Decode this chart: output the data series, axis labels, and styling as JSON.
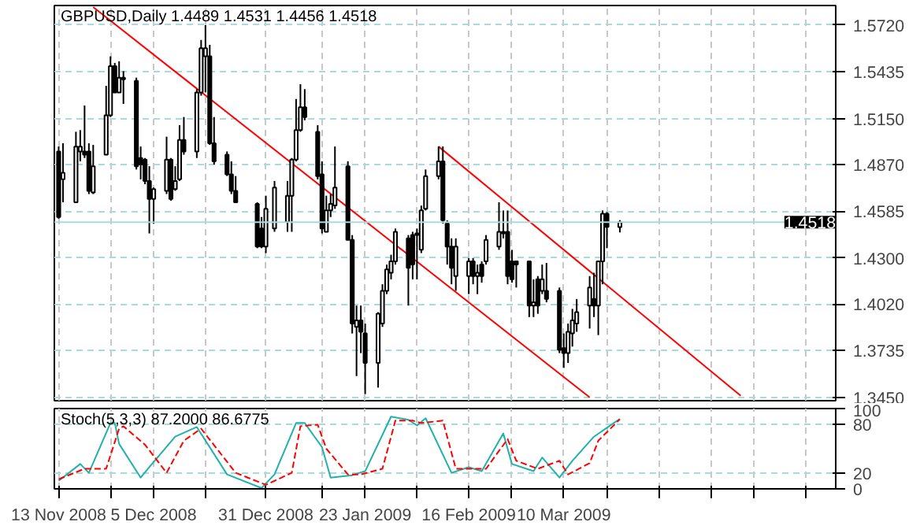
{
  "chart_data": [
    {
      "type": "candlestick",
      "title": "GBPUSD,Daily  1.4489 1.4531 1.4456 1.4518",
      "x": [
        "2008-11-13",
        "2008-11-14",
        "2008-11-17",
        "2008-11-18",
        "2008-11-19",
        "2008-11-20",
        "2008-11-21",
        "2008-11-24",
        "2008-11-25",
        "2008-11-26",
        "2008-11-27",
        "2008-11-28",
        "2008-12-01",
        "2008-12-02",
        "2008-12-03",
        "2008-12-04",
        "2008-12-05",
        "2008-12-08",
        "2008-12-09",
        "2008-12-10",
        "2008-12-11",
        "2008-12-12",
        "2008-12-15",
        "2008-12-16",
        "2008-12-17",
        "2008-12-18",
        "2008-12-19",
        "2008-12-22",
        "2008-12-23",
        "2008-12-24",
        "2008-12-29",
        "2008-12-30",
        "2008-12-31",
        "2009-01-02",
        "2009-01-05",
        "2009-01-06",
        "2009-01-07",
        "2009-01-08",
        "2009-01-09",
        "2009-01-12",
        "2009-01-13",
        "2009-01-14",
        "2009-01-15",
        "2009-01-16",
        "2009-01-19",
        "2009-01-20",
        "2009-01-21",
        "2009-01-22",
        "2009-01-23",
        "2009-01-26",
        "2009-01-27",
        "2009-01-28",
        "2009-01-29",
        "2009-01-30",
        "2009-02-02",
        "2009-02-03",
        "2009-02-04",
        "2009-02-05",
        "2009-02-06",
        "2009-02-09",
        "2009-02-10",
        "2009-02-11",
        "2009-02-12",
        "2009-02-13",
        "2009-02-16",
        "2009-02-17",
        "2009-02-18",
        "2009-02-19",
        "2009-02-20",
        "2009-02-23",
        "2009-02-24",
        "2009-02-25",
        "2009-02-26",
        "2009-02-27",
        "2009-03-02",
        "2009-03-03",
        "2009-03-04",
        "2009-03-05",
        "2009-03-06",
        "2009-03-09",
        "2009-03-10",
        "2009-03-11",
        "2009-03-12",
        "2009-03-13",
        "2009-03-16",
        "2009-03-17",
        "2009-03-18",
        "2009-03-19",
        "2009-03-20",
        "2009-03-23"
      ],
      "ohlc": [
        [
          1.495,
          1.498,
          1.454,
          1.455
        ],
        [
          1.478,
          1.5,
          1.464,
          1.482
        ],
        [
          1.464,
          1.507,
          1.464,
          1.498
        ],
        [
          1.495,
          1.508,
          1.489,
          1.498
        ],
        [
          1.495,
          1.523,
          1.491,
          1.493
        ],
        [
          1.495,
          1.5,
          1.469,
          1.471
        ],
        [
          1.47,
          1.499,
          1.469,
          1.486
        ],
        [
          1.493,
          1.535,
          1.493,
          1.517
        ],
        [
          1.517,
          1.553,
          1.516,
          1.547
        ],
        [
          1.547,
          1.549,
          1.531,
          1.531
        ],
        [
          1.531,
          1.55,
          1.531,
          1.54
        ],
        [
          1.539,
          1.544,
          1.524,
          1.54
        ],
        [
          1.538,
          1.54,
          1.484,
          1.486
        ],
        [
          1.491,
          1.498,
          1.478,
          1.487
        ],
        [
          1.49,
          1.491,
          1.475,
          1.477
        ],
        [
          1.477,
          1.486,
          1.445,
          1.466
        ],
        [
          1.466,
          1.473,
          1.451,
          1.472
        ],
        [
          1.471,
          1.504,
          1.469,
          1.49
        ],
        [
          1.49,
          1.491,
          1.465,
          1.466
        ],
        [
          1.472,
          1.486,
          1.471,
          1.477
        ],
        [
          1.478,
          1.511,
          1.477,
          1.502
        ],
        [
          1.502,
          1.516,
          1.493,
          1.495
        ],
        [
          1.495,
          1.533,
          1.491,
          1.531
        ],
        [
          1.531,
          1.563,
          1.529,
          1.558
        ],
        [
          1.553,
          1.572,
          1.531,
          1.558
        ],
        [
          1.553,
          1.56,
          1.499,
          1.5
        ],
        [
          1.5,
          1.516,
          1.487,
          1.489
        ],
        [
          1.493,
          1.495,
          1.48,
          1.481
        ],
        [
          1.481,
          1.489,
          1.469,
          1.471
        ],
        [
          1.471,
          1.48,
          1.464,
          1.464
        ],
        [
          1.463,
          1.464,
          1.436,
          1.437
        ],
        [
          1.448,
          1.455,
          1.436,
          1.437
        ],
        [
          1.437,
          1.468,
          1.433,
          1.46
        ],
        [
          1.448,
          1.477,
          1.446,
          1.473
        ],
        [
          1.452,
          1.477,
          1.446,
          1.468
        ],
        [
          1.468,
          1.491,
          1.446,
          1.49
        ],
        [
          1.49,
          1.527,
          1.489,
          1.508
        ],
        [
          1.508,
          1.536,
          1.507,
          1.522
        ],
        [
          1.522,
          1.533,
          1.514,
          1.516
        ],
        [
          1.507,
          1.511,
          1.478,
          1.48
        ],
        [
          1.481,
          1.489,
          1.445,
          1.448
        ],
        [
          1.446,
          1.468,
          1.446,
          1.459
        ],
        [
          1.459,
          1.469,
          1.455,
          1.463
        ],
        [
          1.462,
          1.498,
          1.46,
          1.473
        ],
        [
          1.486,
          1.489,
          1.441,
          1.441
        ],
        [
          1.441,
          1.444,
          1.384,
          1.39
        ],
        [
          1.388,
          1.401,
          1.358,
          1.392
        ],
        [
          1.392,
          1.401,
          1.372,
          1.385
        ],
        [
          1.384,
          1.39,
          1.347,
          1.366
        ],
        [
          1.366,
          1.397,
          1.351,
          1.396
        ],
        [
          1.39,
          1.414,
          1.388,
          1.41
        ],
        [
          1.41,
          1.426,
          1.408,
          1.423
        ],
        [
          1.421,
          1.432,
          1.417,
          1.428
        ],
        [
          1.428,
          1.448,
          1.426,
          1.446
        ],
        [
          1.442,
          1.444,
          1.401,
          1.424
        ],
        [
          1.444,
          1.446,
          1.417,
          1.426
        ],
        [
          1.444,
          1.448,
          1.417,
          1.445
        ],
        [
          1.435,
          1.462,
          1.433,
          1.459
        ],
        [
          1.46,
          1.484,
          1.459,
          1.48
        ],
        [
          1.48,
          1.498,
          1.478,
          1.489
        ],
        [
          1.489,
          1.498,
          1.451,
          1.453
        ],
        [
          1.451,
          1.453,
          1.426,
          1.437
        ],
        [
          1.437,
          1.442,
          1.414,
          1.424
        ],
        [
          1.419,
          1.442,
          1.41,
          1.437
        ],
        [
          1.419,
          1.43,
          1.408,
          1.428
        ],
        [
          1.428,
          1.43,
          1.414,
          1.419
        ],
        [
          1.419,
          1.426,
          1.408,
          1.421
        ],
        [
          1.426,
          1.428,
          1.415,
          1.419
        ],
        [
          1.428,
          1.444,
          1.426,
          1.441
        ],
        [
          1.437,
          1.464,
          1.435,
          1.446
        ],
        [
          1.445,
          1.459,
          1.442,
          1.446
        ],
        [
          1.446,
          1.459,
          1.414,
          1.419
        ],
        [
          1.428,
          1.435,
          1.415,
          1.417
        ],
        [
          1.428,
          1.428,
          1.412,
          1.426
        ],
        [
          1.428,
          1.428,
          1.394,
          1.401
        ],
        [
          1.401,
          1.417,
          1.394,
          1.403
        ],
        [
          1.417,
          1.419,
          1.396,
          1.401
        ],
        [
          1.41,
          1.426,
          1.408,
          1.417
        ],
        [
          1.41,
          1.427,
          1.403,
          1.405
        ],
        [
          1.41,
          1.412,
          1.372,
          1.374
        ],
        [
          1.375,
          1.384,
          1.363,
          1.372
        ],
        [
          1.372,
          1.39,
          1.366,
          1.385
        ],
        [
          1.384,
          1.399,
          1.376,
          1.392
        ],
        [
          1.39,
          1.405,
          1.385,
          1.397
        ],
        [
          1.401,
          1.419,
          1.387,
          1.412
        ],
        [
          1.405,
          1.421,
          1.394,
          1.401
        ],
        [
          1.401,
          1.428,
          1.383,
          1.428
        ],
        [
          1.428,
          1.459,
          1.414,
          1.457
        ],
        [
          1.457,
          1.458,
          1.436,
          1.449
        ],
        [
          1.4489,
          1.4531,
          1.4456,
          1.4518
        ]
      ],
      "series": [
        {
          "type": "line",
          "color": "#ff0000",
          "x": [
            "2008-11-21",
            "2009-03-16"
          ],
          "values": [
            1.583,
            1.345
          ]
        },
        {
          "type": "line",
          "color": "#ff0000",
          "x": [
            "2009-02-09",
            "2009-04-20"
          ],
          "values": [
            1.498,
            1.346
          ]
        }
      ],
      "xlim": [
        "2008-11-12",
        "2009-05-12"
      ],
      "ylim": [
        1.343,
        1.584
      ],
      "xticks": [
        {
          "value": "2008-11-13",
          "label": null
        },
        {
          "value": "2008-11-25",
          "label": null
        },
        {
          "value": "2008-12-05",
          "label": null
        },
        {
          "value": "2008-12-17",
          "label": null
        },
        {
          "value": "2008-12-31",
          "label": null
        },
        {
          "value": "2009-01-13",
          "label": null
        },
        {
          "value": "2009-01-23",
          "label": null
        },
        {
          "value": "2009-02-04",
          "label": null
        },
        {
          "value": "2009-02-16",
          "label": null
        },
        {
          "value": "2009-02-26",
          "label": null
        },
        {
          "value": "2009-03-10",
          "label": null
        },
        {
          "value": "2009-03-20",
          "label": null
        },
        {
          "value": "2009-04-01",
          "label": null
        },
        {
          "value": "2009-04-13",
          "label": null
        },
        {
          "value": "2009-04-23",
          "label": null
        },
        {
          "value": "2009-05-05",
          "label": null
        }
      ],
      "yticks": [
        {
          "value": 1.345,
          "label": "1.3450"
        },
        1.3735,
        {
          "value": 1.402,
          "label": "1.4020"
        },
        {
          "value": 1.43,
          "label": "1.4300"
        },
        1.4585,
        {
          "value": 1.487,
          "label": "1.4870"
        },
        {
          "value": 1.515,
          "label": "1.5150"
        },
        1.5435,
        {
          "value": 1.572,
          "label": "1.5720"
        }
      ],
      "tick_labels": "y",
      "grid": true,
      "ref_lines": [
        {
          "axis": "y",
          "value": 1.4518,
          "label": "1.4518",
          "color": "#a8dcdc"
        }
      ]
    },
    {
      "type": "line",
      "title": "Stoch(5,3,3) 87.2000 86.6775",
      "series": [
        {
          "color": "#20b2aa",
          "line_style": "solid",
          "x": [
            "2008-11-13",
            "2008-11-18",
            "2008-11-20",
            "2008-11-25",
            "2008-11-26",
            "2008-11-27",
            "2008-12-02",
            "2008-12-04",
            "2008-12-10",
            "2008-12-15",
            "2008-12-22",
            "2008-12-30",
            "2009-01-02",
            "2009-01-07",
            "2009-01-09",
            "2009-01-13",
            "2009-01-15",
            "2009-01-20",
            "2009-01-23",
            "2009-01-29",
            "2009-02-02",
            "2009-02-04",
            "2009-02-06",
            "2009-02-12",
            "2009-02-16",
            "2009-02-19",
            "2009-02-24",
            "2009-02-26",
            "2009-03-03",
            "2009-03-05",
            "2009-03-09",
            "2009-03-12",
            "2009-03-17",
            "2009-03-23"
          ],
          "values": [
            10,
            31,
            20,
            82,
            82,
            56,
            14,
            27,
            65,
            77,
            18,
            1,
            18,
            82,
            82,
            52,
            14,
            17,
            22,
            90,
            86,
            79,
            88,
            20,
            27,
            22,
            69,
            31,
            22,
            39,
            14,
            35,
            65,
            87.2
          ]
        },
        {
          "color": "#ff0000",
          "line_style": "dashed",
          "x": [
            "2008-11-13",
            "2008-11-19",
            "2008-11-24",
            "2008-11-27",
            "2008-11-28",
            "2008-12-03",
            "2008-12-08",
            "2008-12-12",
            "2008-12-16",
            "2008-12-24",
            "2008-12-31",
            "2009-01-06",
            "2009-01-08",
            "2009-01-12",
            "2009-01-14",
            "2009-01-19",
            "2009-01-22",
            "2009-01-27",
            "2009-01-30",
            "2009-02-03",
            "2009-02-05",
            "2009-02-10",
            "2009-02-13",
            "2009-02-18",
            "2009-02-20",
            "2009-02-25",
            "2009-02-27",
            "2009-03-04",
            "2009-03-09",
            "2009-03-11",
            "2009-03-16",
            "2009-03-18",
            "2009-03-23"
          ],
          "values": [
            12,
            25,
            25,
            75,
            78,
            55,
            20,
            60,
            75,
            20,
            5,
            20,
            78,
            80,
            50,
            18,
            18,
            25,
            85,
            85,
            82,
            85,
            25,
            25,
            25,
            62,
            35,
            25,
            35,
            18,
            32,
            60,
            86.6775
          ]
        }
      ],
      "xlim": [
        "2008-11-12",
        "2009-05-12"
      ],
      "xticks": [
        {
          "value": "2008-11-13",
          "label": "13 Nov 2008"
        },
        {
          "value": "2008-11-25",
          "label": null
        },
        {
          "value": "2008-12-05",
          "label": "5 Dec 2008"
        },
        {
          "value": "2008-12-17",
          "label": null
        },
        {
          "value": "2008-12-31",
          "label": "31 Dec 2008"
        },
        {
          "value": "2009-01-13",
          "label": null
        },
        {
          "value": "2009-01-23",
          "label": "23 Jan 2009"
        },
        {
          "value": "2009-02-04",
          "label": null
        },
        {
          "value": "2009-02-16",
          "label": "16 Feb 2009"
        },
        {
          "value": "2009-02-26",
          "label": null
        },
        {
          "value": "2009-03-10",
          "label": "10 Mar 2009"
        },
        {
          "value": "2009-03-20",
          "label": null
        },
        {
          "value": "2009-04-01",
          "label": null
        },
        {
          "value": "2009-04-13",
          "label": null
        },
        {
          "value": "2009-04-23",
          "label": null
        },
        {
          "value": "2009-05-05",
          "label": null
        }
      ],
      "ylim": [
        0,
        100
      ],
      "yticks": [
        0,
        20,
        80,
        100
      ],
      "grid": true
    }
  ]
}
